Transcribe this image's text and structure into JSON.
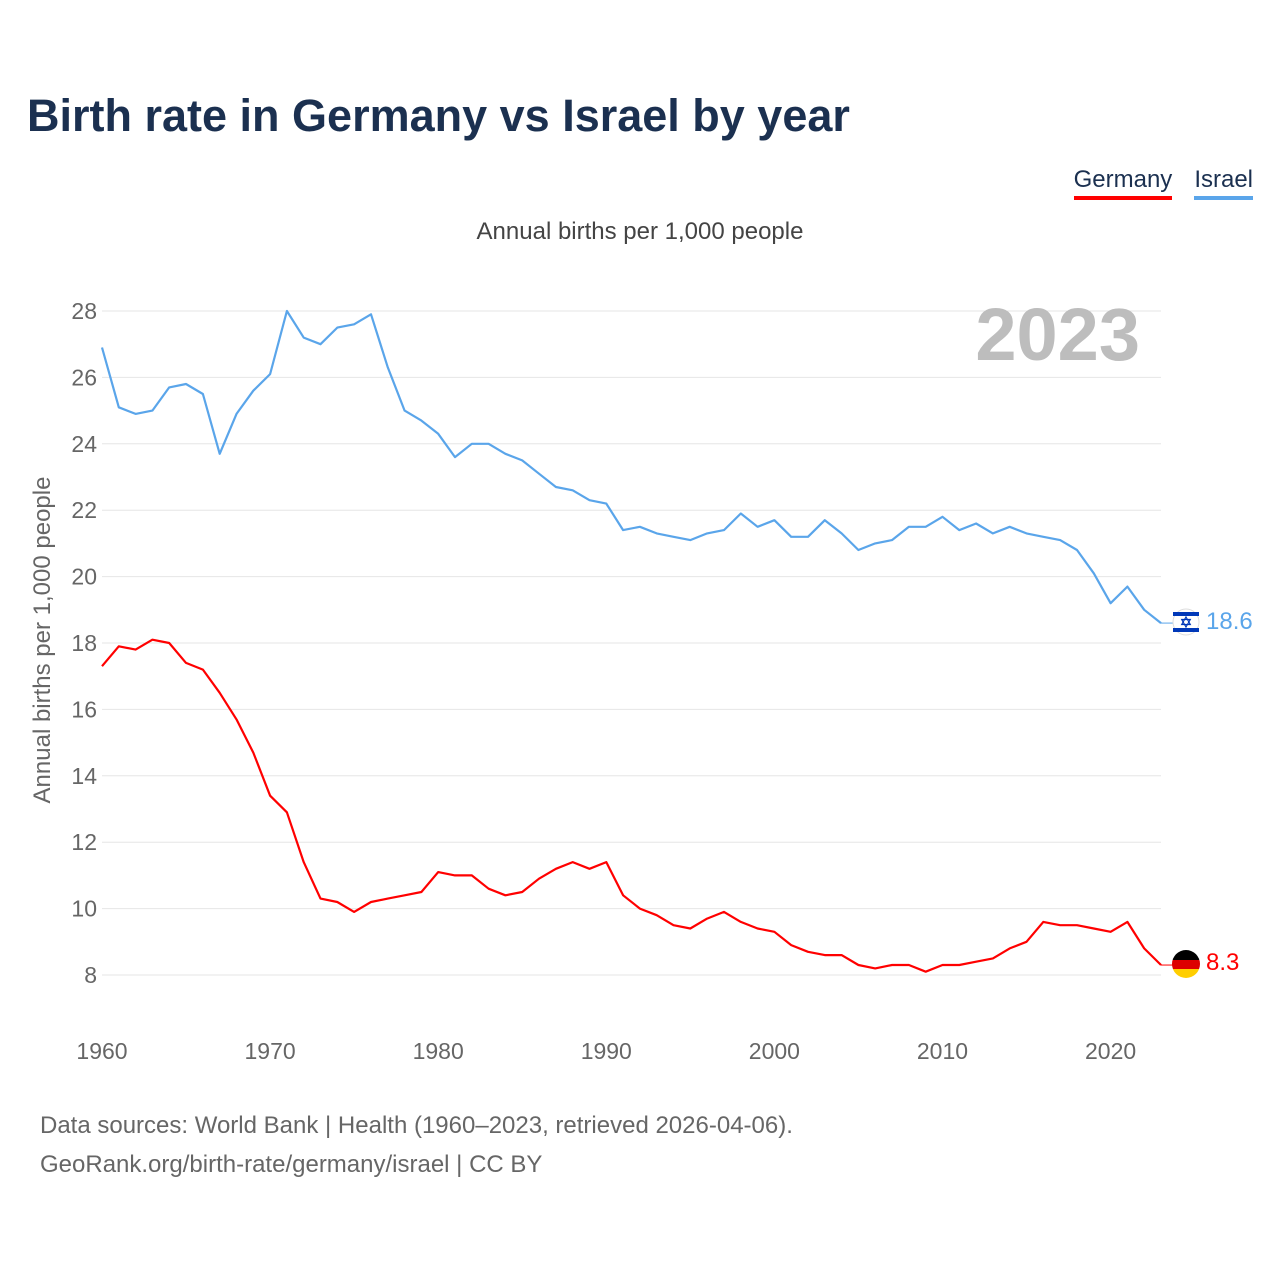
{
  "title": "Birth rate in Germany vs Israel by year",
  "legend": [
    {
      "label": "Germany",
      "color": "#ff0000"
    },
    {
      "label": "Israel",
      "color": "#5aa5ea"
    }
  ],
  "subtitle": "Annual births per 1,000 people",
  "year_watermark": "2023",
  "sources": {
    "line1": "Data sources: World Bank | Health (1960–2023, retrieved 2026-04-06).",
    "line2": "GeoRank.org/birth-rate/germany/israel | CC BY"
  },
  "end_labels": {
    "israel": "18.6",
    "germany": "8.3"
  },
  "chart_data": {
    "type": "line",
    "title": "Birth rate in Germany vs Israel by year",
    "xlabel": "",
    "ylabel": "Annual births per 1,000 people",
    "xlim": [
      1960,
      2023
    ],
    "ylim": [
      7,
      29
    ],
    "x_ticks": [
      1960,
      1970,
      1980,
      1990,
      2000,
      2010,
      2020
    ],
    "y_ticks": [
      8,
      10,
      12,
      14,
      16,
      18,
      20,
      22,
      24,
      26,
      28
    ],
    "grid": true,
    "legend_position": "top-right",
    "x_start": 1960,
    "series": [
      {
        "name": "Germany",
        "color": "#ff0000",
        "values": [
          17.3,
          17.9,
          17.8,
          18.1,
          18.0,
          17.4,
          17.2,
          16.5,
          15.7,
          14.7,
          13.4,
          12.9,
          11.4,
          10.3,
          10.2,
          9.9,
          10.2,
          10.3,
          10.4,
          10.5,
          11.1,
          11.0,
          11.0,
          10.6,
          10.4,
          10.5,
          10.9,
          11.2,
          11.4,
          11.2,
          11.4,
          10.4,
          10.0,
          9.8,
          9.5,
          9.4,
          9.7,
          9.9,
          9.6,
          9.4,
          9.3,
          8.9,
          8.7,
          8.6,
          8.6,
          8.3,
          8.2,
          8.3,
          8.3,
          8.1,
          8.3,
          8.3,
          8.4,
          8.5,
          8.8,
          9.0,
          9.6,
          9.5,
          9.5,
          9.4,
          9.3,
          9.6,
          8.8,
          8.3
        ]
      },
      {
        "name": "Israel",
        "color": "#5aa5ea",
        "values": [
          26.9,
          25.1,
          24.9,
          25.0,
          25.7,
          25.8,
          25.5,
          23.7,
          24.9,
          25.6,
          26.1,
          28.0,
          27.2,
          27.0,
          27.5,
          27.6,
          27.9,
          26.3,
          25.0,
          24.7,
          24.3,
          23.6,
          24.0,
          24.0,
          23.7,
          23.5,
          23.1,
          22.7,
          22.6,
          22.3,
          22.2,
          21.4,
          21.5,
          21.3,
          21.2,
          21.1,
          21.3,
          21.4,
          21.9,
          21.5,
          21.7,
          21.2,
          21.2,
          21.7,
          21.3,
          20.8,
          21.0,
          21.1,
          21.5,
          21.5,
          21.8,
          21.4,
          21.6,
          21.3,
          21.5,
          21.3,
          21.2,
          21.1,
          20.8,
          20.1,
          19.2,
          19.7,
          19.0,
          18.6
        ]
      }
    ]
  }
}
